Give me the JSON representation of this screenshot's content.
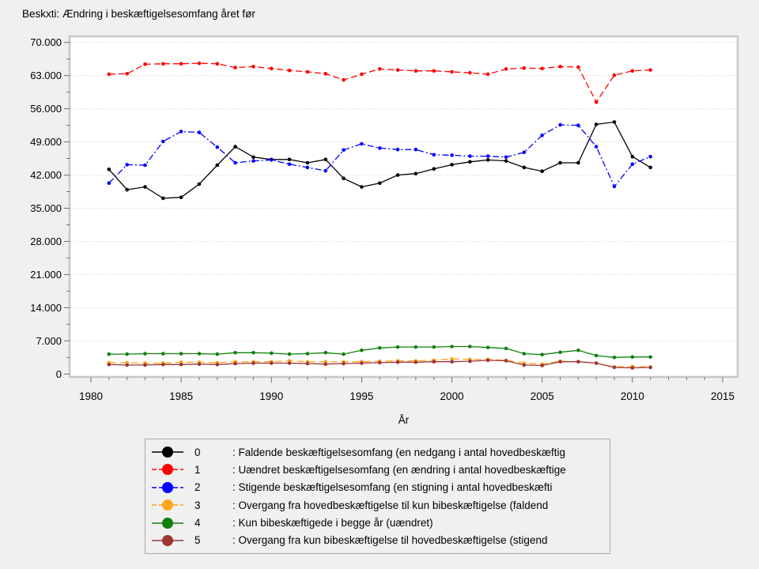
{
  "title": "Beskxti: Ændring i beskæftigelsesomfang året før",
  "chart_data": {
    "type": "line",
    "x": [
      1981,
      1982,
      1983,
      1984,
      1985,
      1986,
      1987,
      1988,
      1989,
      1990,
      1991,
      1992,
      1993,
      1994,
      1995,
      1996,
      1997,
      1998,
      1999,
      2000,
      2001,
      2002,
      2003,
      2004,
      2005,
      2006,
      2007,
      2008,
      2009,
      2010,
      2011
    ],
    "xlabel": "År",
    "x_axis": {
      "min": 1980,
      "max": 2015,
      "major_ticks": [
        1980,
        1985,
        1990,
        1995,
        2000,
        2005,
        2010,
        2015
      ],
      "major_tick_labels": [
        "1980",
        "1985",
        "1990",
        "1995",
        "2000",
        "2005",
        "2010",
        "2015"
      ],
      "minor_tick_every_years": 1
    },
    "y_axis": {
      "min": 0,
      "max": 70000,
      "major_tick_interval": 7000,
      "minor_tick_interval": 3500,
      "tick_labels_top_to_bottom": [
        "70.000",
        "63.000",
        "56.000",
        "49.000",
        "42.000",
        "35.000",
        "28.000",
        "21.000",
        "14.000",
        "7.000",
        "0"
      ]
    },
    "grid": "horizontal-dashed",
    "legend_position": "bottom",
    "series": [
      {
        "key": "0",
        "label": ": Faldende beskæftigelsesomfang (en nedgang i antal hovedbeskæftig",
        "color": "#000000",
        "line_style": "solid",
        "marker": "circle",
        "values": [
          43200,
          38900,
          39500,
          37100,
          37300,
          40100,
          44100,
          48000,
          45800,
          45300,
          45300,
          44600,
          45300,
          41300,
          39500,
          40300,
          42000,
          42300,
          43300,
          44200,
          44800,
          45200,
          45000,
          43600,
          42800,
          44600,
          44600,
          52700,
          53200,
          45900,
          43600
        ]
      },
      {
        "key": "1",
        "label": ": Uændret beskæftigelsesomfang (en ændring i antal hovedbeskæftige",
        "color": "#ff0000",
        "line_style": "dashed",
        "marker": "circle",
        "values": [
          63300,
          63400,
          65400,
          65500,
          65500,
          65600,
          65500,
          64700,
          64900,
          64500,
          64100,
          63800,
          63400,
          62100,
          63300,
          64400,
          64200,
          64000,
          64000,
          63800,
          63600,
          63300,
          64400,
          64600,
          64500,
          64900,
          64800,
          57400,
          63100,
          64000,
          64200
        ]
      },
      {
        "key": "2",
        "label": ": Stigende beskæftigelsesomfang (en stigning i antal hovedbeskæfti",
        "color": "#0000ff",
        "line_style": "dashdot",
        "marker": "circle",
        "values": [
          40300,
          44200,
          44100,
          49100,
          51200,
          51000,
          47900,
          44600,
          45000,
          45200,
          44300,
          43600,
          42900,
          47300,
          48600,
          47700,
          47400,
          47400,
          46300,
          46200,
          46000,
          46000,
          45800,
          46800,
          50400,
          52600,
          52500,
          48000,
          39600,
          44300,
          45900
        ]
      },
      {
        "key": "3",
        "label": ": Overgang fra hovedbeskæftigelse til kun bibeskæftigelse (faldend",
        "color": "#ffa51e",
        "line_style": "longdash",
        "marker": "circle",
        "values": [
          2400,
          2400,
          2300,
          2300,
          2500,
          2500,
          2400,
          2600,
          2600,
          2600,
          2800,
          2600,
          2600,
          2600,
          2600,
          2700,
          2800,
          2800,
          2900,
          3200,
          3100,
          3100,
          2900,
          2300,
          2100,
          2700,
          2600,
          2300,
          1500,
          1600,
          1500
        ]
      },
      {
        "key": "4",
        "label": ": Kun bibeskæftigede i begge år (uændret)",
        "color": "#108010",
        "line_style": "solid",
        "marker": "circle",
        "values": [
          4200,
          4200,
          4300,
          4300,
          4300,
          4300,
          4200,
          4500,
          4500,
          4400,
          4200,
          4300,
          4500,
          4200,
          5000,
          5500,
          5700,
          5700,
          5700,
          5800,
          5800,
          5600,
          5400,
          4300,
          4100,
          4600,
          5000,
          3900,
          3500,
          3600,
          3600
        ]
      },
      {
        "key": "5",
        "label": ": Overgang fra kun bibeskæftigelse til hovedbeskæftigelse (stigend",
        "color": "#a03434",
        "line_style": "solid",
        "marker": "circle",
        "values": [
          2000,
          1900,
          1900,
          2000,
          2000,
          2100,
          2000,
          2200,
          2300,
          2300,
          2300,
          2200,
          2100,
          2200,
          2300,
          2400,
          2500,
          2500,
          2600,
          2600,
          2700,
          2900,
          2800,
          1900,
          1800,
          2600,
          2600,
          2300,
          1400,
          1300,
          1400
        ]
      }
    ]
  }
}
